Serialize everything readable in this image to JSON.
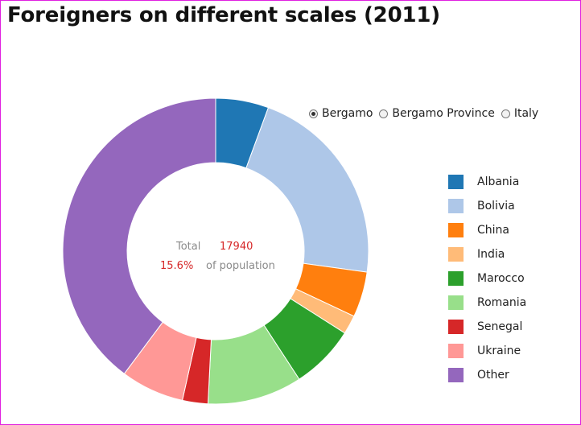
{
  "title": "Foreigners on different scales (2011)",
  "radios": [
    {
      "label": "Bergamo",
      "selected": true
    },
    {
      "label": "Bergamo Province",
      "selected": false
    },
    {
      "label": "Italy",
      "selected": false
    }
  ],
  "center": {
    "total_label": "Total",
    "total_value": "17940",
    "percent_value": "15.6%",
    "population_label": "of population"
  },
  "chart_data": {
    "type": "pie",
    "donut": true,
    "categories": [
      "Albania",
      "Bolivia",
      "China",
      "India",
      "Marocco",
      "Romania",
      "Senegal",
      "Ukraine",
      "Other"
    ],
    "values": [
      5.6,
      21.6,
      4.8,
      2.0,
      6.8,
      10.0,
      2.7,
      6.7,
      39.8
    ],
    "colors": [
      "#1f77b4",
      "#aec7e8",
      "#ff7f0e",
      "#ffbb78",
      "#2ca02c",
      "#98df8a",
      "#d62728",
      "#ff9896",
      "#9467bd"
    ],
    "legend_position": "right"
  }
}
